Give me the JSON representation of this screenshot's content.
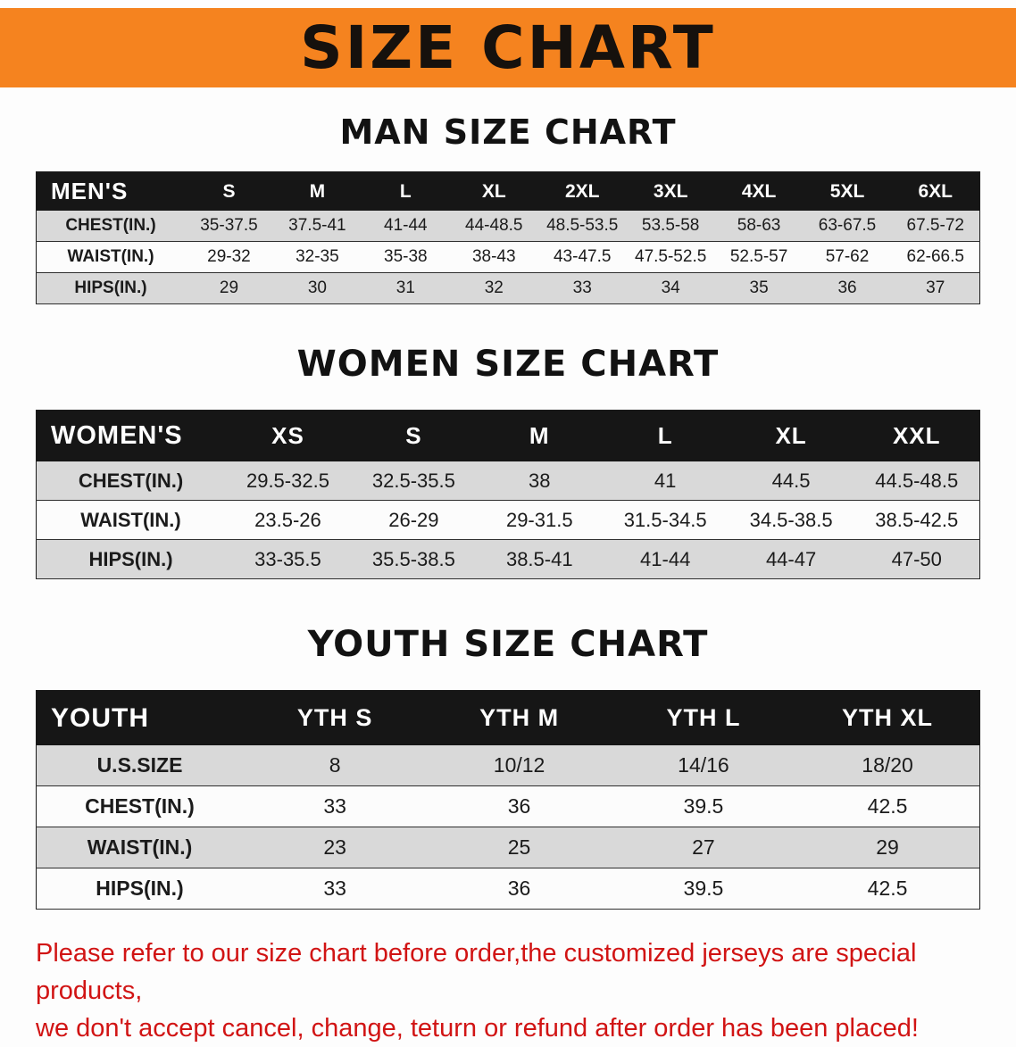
{
  "banner": {
    "title": "SIZE CHART"
  },
  "theme": {
    "banner_bg": "#f5831f",
    "header_bg": "#161616",
    "row_alt": "#d9d9d9",
    "disclaimer_color": "#d11414"
  },
  "sections": [
    {
      "heading": "MAN SIZE CHART",
      "table": {
        "header": [
          "MEN'S",
          "S",
          "M",
          "L",
          "XL",
          "2XL",
          "3XL",
          "4XL",
          "5XL",
          "6XL"
        ],
        "rows": [
          [
            "CHEST(IN.)",
            "35-37.5",
            "37.5-41",
            "41-44",
            "44-48.5",
            "48.5-53.5",
            "53.5-58",
            "58-63",
            "63-67.5",
            "67.5-72"
          ],
          [
            "WAIST(IN.)",
            "29-32",
            "32-35",
            "35-38",
            "38-43",
            "43-47.5",
            "47.5-52.5",
            "52.5-57",
            "57-62",
            "62-66.5"
          ],
          [
            "HIPS(IN.)",
            "29",
            "30",
            "31",
            "32",
            "33",
            "34",
            "35",
            "36",
            "37"
          ]
        ]
      }
    },
    {
      "heading": "WOMEN SIZE CHART",
      "table": {
        "header": [
          "WOMEN'S",
          "XS",
          "S",
          "M",
          "L",
          "XL",
          "XXL"
        ],
        "rows": [
          [
            "CHEST(IN.)",
            "29.5-32.5",
            "32.5-35.5",
            "38",
            "41",
            "44.5",
            "44.5-48.5"
          ],
          [
            "WAIST(IN.)",
            "23.5-26",
            "26-29",
            "29-31.5",
            "31.5-34.5",
            "34.5-38.5",
            "38.5-42.5"
          ],
          [
            "HIPS(IN.)",
            "33-35.5",
            "35.5-38.5",
            "38.5-41",
            "41-44",
            "44-47",
            "47-50"
          ]
        ]
      }
    },
    {
      "heading": "YOUTH SIZE CHART",
      "table": {
        "header": [
          "YOUTH",
          "YTH S",
          "YTH M",
          "YTH L",
          "YTH XL"
        ],
        "rows": [
          [
            "U.S.SIZE",
            "8",
            "10/12",
            "14/16",
            "18/20"
          ],
          [
            "CHEST(IN.)",
            "33",
            "36",
            "39.5",
            "42.5"
          ],
          [
            "WAIST(IN.)",
            "23",
            "25",
            "27",
            "29"
          ],
          [
            "HIPS(IN.)",
            "33",
            "36",
            "39.5",
            "42.5"
          ]
        ]
      }
    }
  ],
  "disclaimer": {
    "line1": "Please refer to our size chart before order,the customized jerseys are special products,",
    "line2": "we don't accept cancel, change, teturn or refund after order has been placed!"
  }
}
